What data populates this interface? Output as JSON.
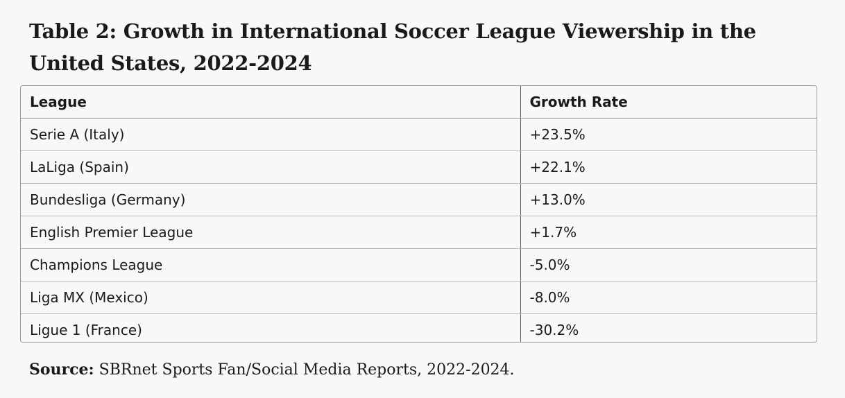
{
  "title": "Table 2: Growth in International Soccer League Viewership in the United States, 2022-2024",
  "table": {
    "headers": [
      "League",
      "Growth Rate"
    ],
    "rows": [
      [
        "Serie A (Italy)",
        "+23.5%"
      ],
      [
        "LaLiga (Spain)",
        "+22.1%"
      ],
      [
        "Bundesliga (Germany)",
        "+13.0%"
      ],
      [
        "English Premier League",
        "+1.7%"
      ],
      [
        "Champions League",
        "-5.0%"
      ],
      [
        "Liga MX (Mexico)",
        "-8.0%"
      ],
      [
        "Ligue 1 (France)",
        "-30.2%"
      ]
    ]
  },
  "source": {
    "label": "Source:",
    "text": "SBRnet Sports Fan/Social Media Reports, 2022-2024."
  }
}
